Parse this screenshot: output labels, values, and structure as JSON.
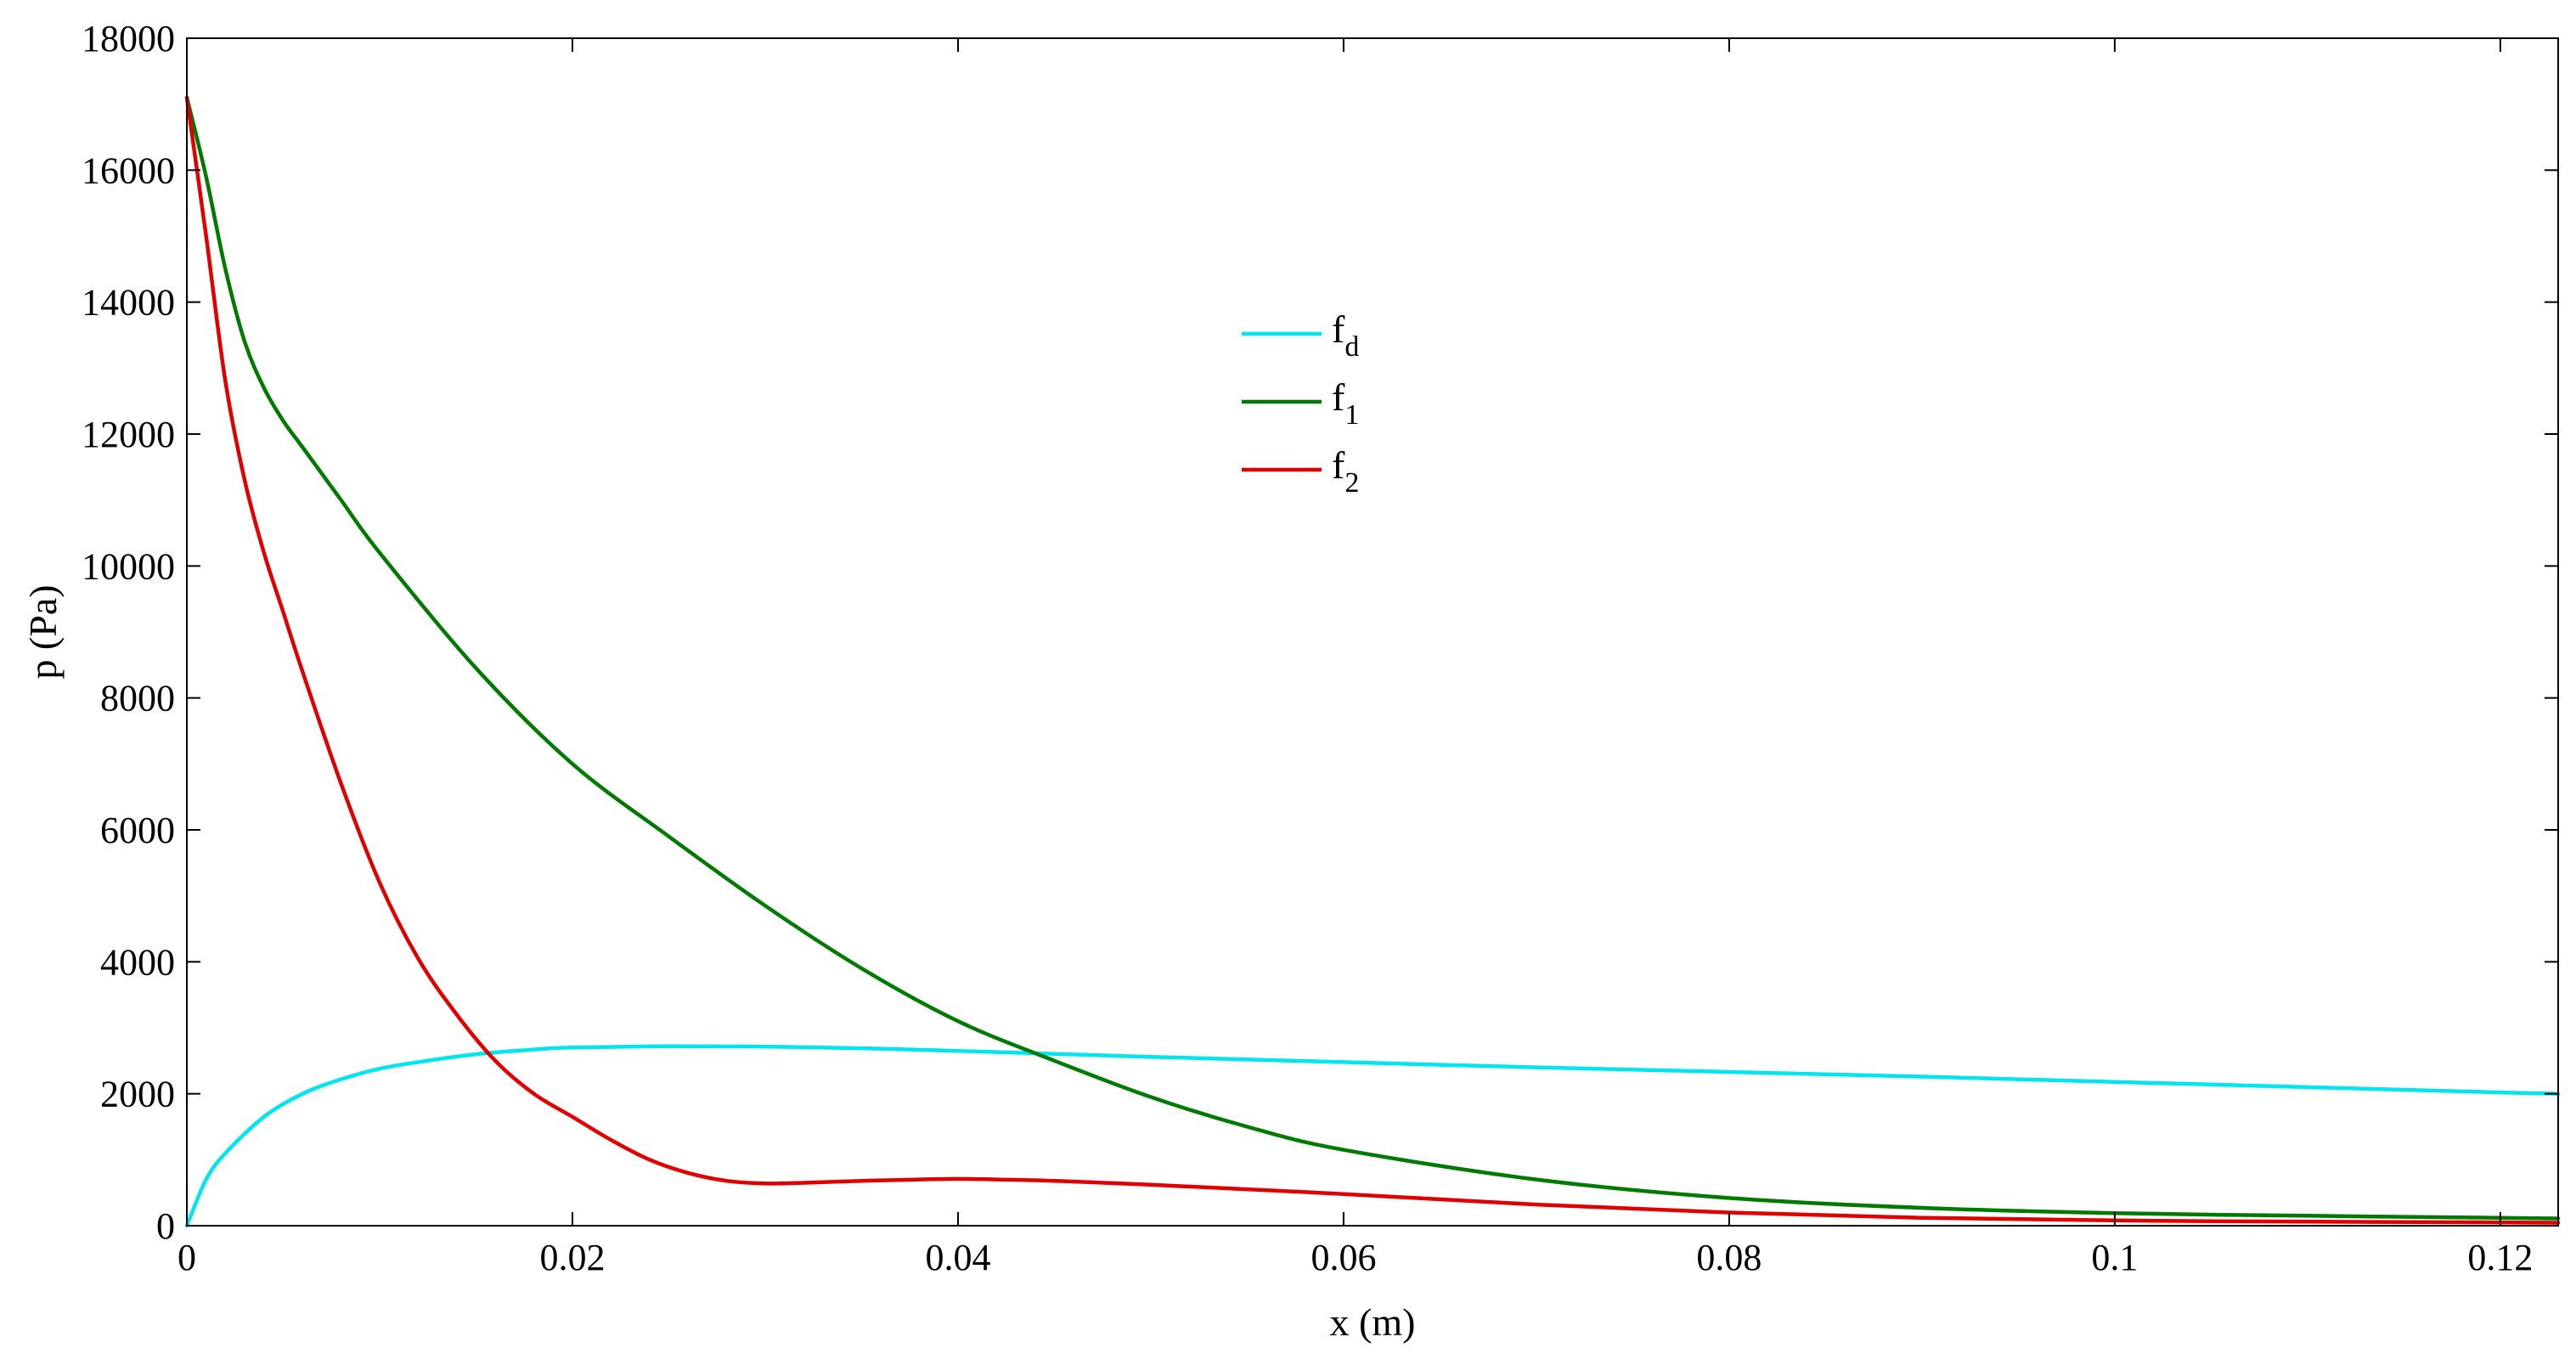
{
  "chart_data": {
    "type": "line",
    "title": "",
    "xlabel": "x (m)",
    "ylabel": "p (Pa)",
    "xlim": [
      0,
      0.123
    ],
    "ylim": [
      0,
      18000
    ],
    "x_ticks": [
      0,
      0.02,
      0.04,
      0.06,
      0.08,
      0.1,
      0.12
    ],
    "x_tick_labels": [
      "0",
      "0.02",
      "0.04",
      "0.06",
      "0.08",
      "0.1",
      "0.12"
    ],
    "y_ticks": [
      0,
      2000,
      4000,
      6000,
      8000,
      10000,
      12000,
      14000,
      16000,
      18000
    ],
    "y_tick_labels": [
      "0",
      "2000",
      "4000",
      "6000",
      "8000",
      "10000",
      "12000",
      "14000",
      "16000",
      "18000"
    ],
    "grid": false,
    "legend_position": "upper-center",
    "series": [
      {
        "name": "f_d",
        "legend_main": "f",
        "legend_sub": "d",
        "color": "#00e5ee",
        "x": [
          0,
          0.001,
          0.002,
          0.004,
          0.006,
          0.008,
          0.01,
          0.012,
          0.015,
          0.018,
          0.02,
          0.025,
          0.03,
          0.035,
          0.04,
          0.05,
          0.06,
          0.07,
          0.08,
          0.09,
          0.1,
          0.11,
          0.12,
          0.123
        ],
        "y": [
          0,
          700,
          1100,
          1650,
          2000,
          2220,
          2380,
          2480,
          2600,
          2670,
          2700,
          2720,
          2715,
          2690,
          2650,
          2560,
          2480,
          2400,
          2330,
          2260,
          2180,
          2100,
          2020,
          2000
        ]
      },
      {
        "name": "f_1",
        "legend_main": "f",
        "legend_sub": "1",
        "color": "#007a00",
        "x": [
          0,
          0.001,
          0.002,
          0.003,
          0.004,
          0.005,
          0.006,
          0.008,
          0.01,
          0.015,
          0.02,
          0.025,
          0.03,
          0.035,
          0.04,
          0.045,
          0.05,
          0.055,
          0.06,
          0.07,
          0.08,
          0.09,
          0.1,
          0.11,
          0.12,
          0.123
        ],
        "y": [
          17100,
          15900,
          14500,
          13400,
          12700,
          12200,
          11800,
          11000,
          10200,
          8450,
          7000,
          5900,
          4850,
          3900,
          3100,
          2500,
          1950,
          1500,
          1150,
          700,
          420,
          270,
          190,
          150,
          120,
          110
        ]
      },
      {
        "name": "f_2",
        "legend_main": "f",
        "legend_sub": "2",
        "color": "#e00000",
        "x": [
          0,
          0.001,
          0.002,
          0.003,
          0.004,
          0.005,
          0.006,
          0.008,
          0.01,
          0.012,
          0.014,
          0.016,
          0.018,
          0.02,
          0.022,
          0.024,
          0.026,
          0.028,
          0.03,
          0.032,
          0.035,
          0.038,
          0.04,
          0.042,
          0.045,
          0.05,
          0.06,
          0.07,
          0.08,
          0.09,
          0.1,
          0.11,
          0.12,
          0.123
        ],
        "y": [
          17100,
          15000,
          12800,
          11300,
          10200,
          9300,
          8400,
          6700,
          5200,
          4050,
          3200,
          2500,
          2000,
          1650,
          1300,
          1000,
          800,
          680,
          640,
          650,
          680,
          700,
          710,
          700,
          680,
          620,
          480,
          320,
          200,
          120,
          80,
          60,
          50,
          45
        ]
      }
    ]
  }
}
